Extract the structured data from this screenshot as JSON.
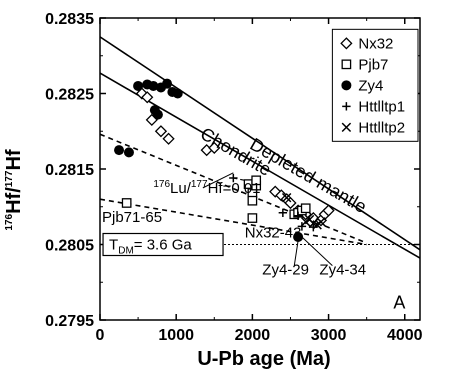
{
  "chart_data": {
    "type": "scatter",
    "panel_label": "A",
    "xlabel": "U-Pb age (Ma)",
    "ylabel": {
      "sup": "176",
      "main": "Hf/",
      "sup2": "177",
      "main2": "Hf"
    },
    "xlim": [
      0,
      4200
    ],
    "ylim": [
      0.2795,
      0.2835
    ],
    "xticks": [
      0,
      1000,
      2000,
      3000,
      4000
    ],
    "xtick_labels": [
      "0",
      "1000",
      "2000",
      "3000",
      "4000"
    ],
    "yticks": [
      0.2795,
      0.2805,
      0.2815,
      0.2825,
      0.2835
    ],
    "ytick_labels": [
      "0.2795",
      "0.2805",
      "0.2815",
      "0.2825",
      "0.2835"
    ],
    "lines": [
      {
        "name": "Depleted mantle",
        "style": "solid",
        "x": [
          0,
          4200
        ],
        "y": [
          0.28325,
          0.28043
        ]
      },
      {
        "name": "Chondrite",
        "style": "solid",
        "x": [
          0,
          4200
        ],
        "y": [
          0.28277,
          0.28032
        ]
      },
      {
        "name": "Lu/Hf=0.01 upper",
        "style": "dashed",
        "x": [
          0,
          3500
        ],
        "y": [
          0.28196,
          0.28052
        ]
      },
      {
        "name": "Lu/Hf=0.01 lower",
        "style": "dashed",
        "x": [
          0,
          3500
        ],
        "y": [
          0.2811,
          0.2805
        ]
      },
      {
        "name": "TDM=3.6 Ga",
        "style": "dotted",
        "x": [
          0,
          4200
        ],
        "y": [
          0.2805,
          0.2805
        ]
      }
    ],
    "series": [
      {
        "name": "Nx32",
        "marker": "diamond",
        "x": [
          550,
          620,
          680,
          800,
          900,
          1400,
          1500,
          2300,
          2380,
          2450,
          2500,
          2600,
          2700,
          2800,
          2900,
          2950,
          3000
        ],
        "y": [
          0.2825,
          0.28245,
          0.28215,
          0.282,
          0.2819,
          0.28175,
          0.28178,
          0.2812,
          0.28115,
          0.2811,
          0.28105,
          0.28095,
          0.2809,
          0.28085,
          0.28082,
          0.2809,
          0.28095
        ]
      },
      {
        "name": "Pjb7",
        "marker": "square",
        "x": [
          350,
          1950,
          2000,
          2000,
          2000,
          2050,
          2050,
          2550,
          2600,
          2650,
          2700
        ],
        "y": [
          0.28105,
          0.2813,
          0.28118,
          0.28108,
          0.28085,
          0.28128,
          0.28135,
          0.2809,
          0.28092,
          0.28095,
          0.28098
        ]
      },
      {
        "name": "Zy4",
        "marker": "circle",
        "x": [
          250,
          380,
          500,
          620,
          700,
          720,
          760,
          800,
          880,
          950,
          1020,
          2600
        ],
        "y": [
          0.28175,
          0.28172,
          0.2826,
          0.28262,
          0.2826,
          0.28228,
          0.28222,
          0.28258,
          0.28263,
          0.28252,
          0.2825,
          0.2806
        ]
      },
      {
        "name": "Httlltp1",
        "marker": "plus",
        "x": [
          1750,
          2400,
          2600,
          2650,
          2800
        ],
        "y": [
          0.28138,
          0.28092,
          0.28088,
          0.28074,
          0.28073
        ]
      },
      {
        "name": "Httlltp2",
        "marker": "cross",
        "x": [
          2450,
          2700,
          2750,
          2800,
          2850,
          2900
        ],
        "y": [
          0.28112,
          0.2808,
          0.28083,
          0.28078,
          0.28076,
          0.2808
        ]
      }
    ],
    "annotations": {
      "depleted_mantle": "Depleted mantle",
      "chondrite": "Chondrite",
      "luhf": {
        "sup1": "176",
        "t1": "Lu/",
        "sup2": "177",
        "t2": "Hf=0.01"
      },
      "pjb71": "Pjb71-65",
      "tdm": {
        "t1": "T",
        "sub": "DM",
        "t2": "= 3.6 Ga"
      },
      "nx32_43": "Nx32-43",
      "zy4_29": "Zy4-29",
      "zy4_34": "Zy4-34"
    },
    "legend": {
      "position": "top-right",
      "items": [
        "Nx32",
        "Pjb7",
        "Zy4",
        "Httlltp1",
        "Httlltp2"
      ]
    }
  }
}
